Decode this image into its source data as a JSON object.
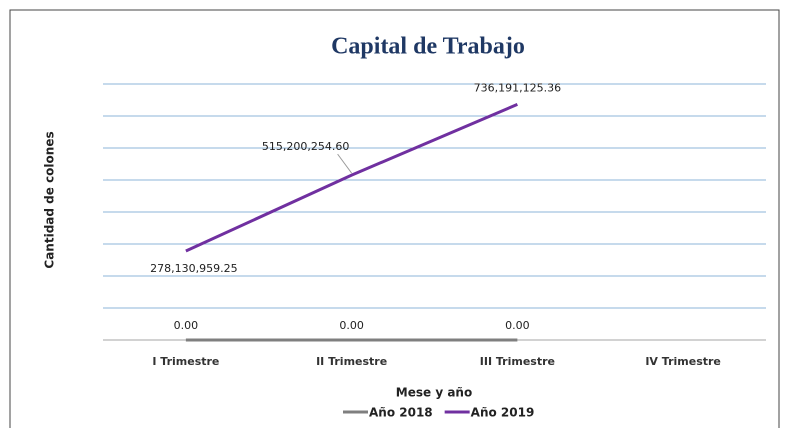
{
  "chart_data": {
    "type": "line",
    "title": "Capital de Trabajo",
    "xlabel": "Mese y año",
    "ylabel": "Cantidad de colones",
    "categories": [
      "I Trimestre",
      "II Trimestre",
      "III Trimestre",
      "IV Trimestre"
    ],
    "series": [
      {
        "name": "Año 2018",
        "color": "#7f7f7f",
        "values": [
          0,
          0,
          0,
          null
        ],
        "value_labels": [
          "0.00",
          "0.00",
          "0.00",
          null
        ]
      },
      {
        "name": "Año 2019",
        "color": "#7030a0",
        "values": [
          278130959.25,
          515200254.6,
          736191125.36,
          null
        ],
        "value_labels": [
          "278,130,959.25",
          "515,200,254.60",
          "736,191,125.36",
          null
        ]
      }
    ],
    "ylim": [
      0,
      800000000
    ],
    "yticks": [
      0,
      100000000,
      200000000,
      300000000,
      400000000,
      500000000,
      600000000,
      700000000,
      800000000
    ],
    "grid": true,
    "legend": "bottom"
  }
}
